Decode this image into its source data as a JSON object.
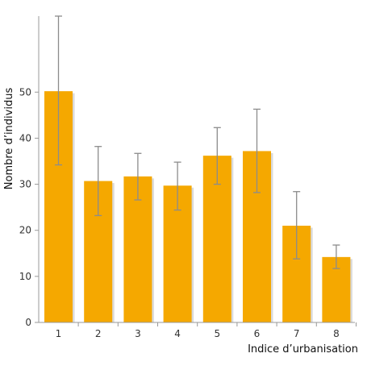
{
  "chart_data": {
    "type": "bar",
    "title": "",
    "xlabel": "Indice d’urbanisation",
    "ylabel": "Nombre d’individus",
    "categories": [
      "1",
      "2",
      "3",
      "4",
      "5",
      "6",
      "7",
      "8"
    ],
    "values": [
      50.2,
      30.7,
      31.7,
      29.7,
      36.2,
      37.2,
      21.0,
      14.2
    ],
    "error_low": [
      34.2,
      23.2,
      26.6,
      24.4,
      30.0,
      28.2,
      13.8,
      11.7
    ],
    "error_high": [
      66.5,
      38.2,
      36.7,
      34.8,
      42.3,
      46.3,
      28.4,
      16.8
    ],
    "yticks": [
      0,
      10,
      20,
      30,
      40,
      50
    ],
    "ylim": [
      0,
      66.5
    ],
    "grid": false,
    "legend": "none",
    "colors": {
      "bar_fill": "#f5a800",
      "bar_shadow": "#bcbcbc",
      "error_bar": "#8c8c8c",
      "axis": "#9a9a9a",
      "text": "#333333"
    }
  }
}
